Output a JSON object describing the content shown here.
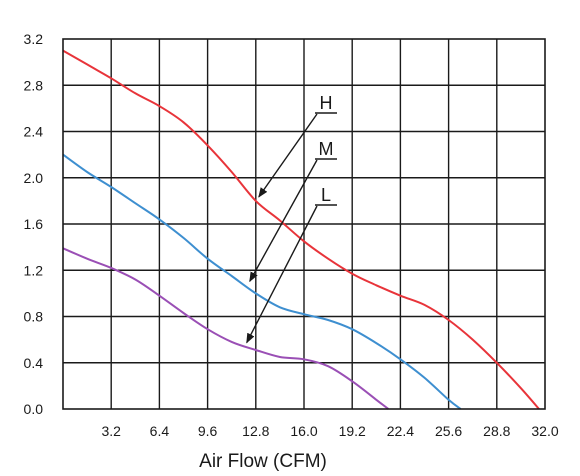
{
  "chart_data": {
    "type": "line",
    "title": "",
    "xlabel": "Air Flow (CFM)",
    "ylabel": "",
    "xlim": [
      0,
      32.0
    ],
    "ylim": [
      0,
      3.2
    ],
    "xticks": [
      "3.2",
      "6.4",
      "9.6",
      "12.8",
      "16.0",
      "19.2",
      "22.4",
      "25.6",
      "28.8",
      "32.0"
    ],
    "yticks": [
      "0.0",
      "0.4",
      "0.8",
      "1.2",
      "1.6",
      "2.0",
      "2.4",
      "2.8",
      "3.2"
    ],
    "grid": true,
    "legend": "none",
    "series": [
      {
        "name": "H",
        "color": "#e8343a",
        "x": [
          0,
          1.6,
          3.2,
          4.8,
          6.4,
          8.0,
          9.6,
          11.2,
          12.8,
          14.4,
          16.0,
          17.6,
          19.2,
          20.8,
          22.4,
          24.0,
          25.6,
          27.2,
          28.8,
          30.4,
          31.6
        ],
        "y": [
          3.1,
          2.98,
          2.86,
          2.73,
          2.62,
          2.48,
          2.28,
          2.05,
          1.8,
          1.63,
          1.45,
          1.3,
          1.17,
          1.07,
          0.98,
          0.9,
          0.77,
          0.6,
          0.4,
          0.18,
          0.0
        ]
      },
      {
        "name": "M",
        "color": "#3e8fd0",
        "x": [
          0,
          1.6,
          3.2,
          4.8,
          6.4,
          8.0,
          9.6,
          11.2,
          12.8,
          14.4,
          16.0,
          17.6,
          19.2,
          20.8,
          22.4,
          24.0,
          25.6,
          26.4
        ],
        "y": [
          2.2,
          2.05,
          1.92,
          1.78,
          1.64,
          1.48,
          1.3,
          1.15,
          1.0,
          0.88,
          0.82,
          0.77,
          0.69,
          0.57,
          0.43,
          0.27,
          0.08,
          0.0
        ]
      },
      {
        "name": "L",
        "color": "#9a4fb5",
        "x": [
          0,
          1.6,
          3.2,
          4.8,
          6.4,
          8.0,
          9.6,
          11.2,
          12.8,
          14.4,
          16.0,
          17.6,
          19.2,
          20.8,
          21.6
        ],
        "y": [
          1.39,
          1.3,
          1.22,
          1.12,
          0.98,
          0.83,
          0.69,
          0.58,
          0.51,
          0.45,
          0.43,
          0.37,
          0.24,
          0.08,
          0.0
        ]
      }
    ],
    "annotations": [
      {
        "label": "H",
        "series": "H",
        "target": [
          12.8,
          1.8
        ]
      },
      {
        "label": "M",
        "series": "M",
        "target": [
          12.2,
          1.07
        ]
      },
      {
        "label": "L",
        "series": "L",
        "target": [
          12.0,
          0.54
        ]
      }
    ]
  }
}
